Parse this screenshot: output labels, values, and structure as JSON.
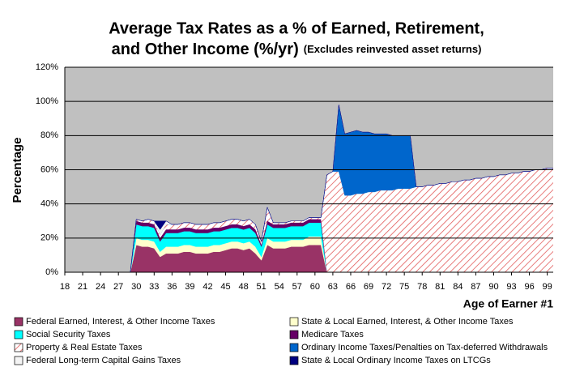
{
  "chart_data": {
    "type": "stacked-area",
    "title_lines": [
      "Average Tax Rates as a % of Earned, Retirement,",
      "and Other Income (%/yr)"
    ],
    "subtitle": "(Excludes reinvested asset returns)",
    "x_label": "Age of Earner #1",
    "y_label": "Percentage",
    "x": [
      18,
      19,
      20,
      21,
      22,
      23,
      24,
      25,
      26,
      27,
      28,
      29,
      30,
      31,
      32,
      33,
      34,
      35,
      36,
      37,
      38,
      39,
      40,
      41,
      42,
      43,
      44,
      45,
      46,
      47,
      48,
      49,
      50,
      51,
      52,
      53,
      54,
      55,
      56,
      57,
      58,
      59,
      60,
      61,
      62,
      63,
      64,
      65,
      66,
      67,
      68,
      69,
      70,
      71,
      72,
      73,
      74,
      75,
      76,
      77,
      78,
      79,
      80,
      81,
      82,
      83,
      84,
      85,
      86,
      87,
      88,
      89,
      90,
      91,
      92,
      93,
      94,
      95,
      96,
      97,
      98,
      99,
      100
    ],
    "xlim": [
      18,
      100
    ],
    "xticks": [
      18,
      21,
      24,
      27,
      30,
      33,
      36,
      39,
      42,
      45,
      48,
      51,
      54,
      57,
      60,
      63,
      66,
      69,
      72,
      75,
      78,
      81,
      84,
      87,
      90,
      93,
      96,
      99
    ],
    "ylim": [
      0,
      120
    ],
    "yticks": [
      {
        "value": 0,
        "label": "0%"
      },
      {
        "value": 20,
        "label": "20%"
      },
      {
        "value": 40,
        "label": "40%"
      },
      {
        "value": 60,
        "label": "60%"
      },
      {
        "value": 80,
        "label": "80%"
      },
      {
        "value": 100,
        "label": "100%"
      },
      {
        "value": 120,
        "label": "120%"
      }
    ],
    "grid": true,
    "series": [
      {
        "name": "Federal Earned, Interest, & Other Income Taxes",
        "color": "#993366",
        "values": [
          0,
          0,
          0,
          0,
          0,
          0,
          0,
          0,
          0,
          0,
          0,
          0,
          16,
          15,
          15,
          14,
          9,
          11,
          11,
          11,
          12,
          12,
          11,
          11,
          11,
          12,
          12,
          13,
          14,
          14,
          13,
          14,
          11,
          7,
          16,
          14,
          14,
          14,
          15,
          15,
          15,
          16,
          16,
          16,
          0,
          0,
          0,
          0,
          0,
          0,
          0,
          0,
          0,
          0,
          0,
          0,
          0,
          0,
          0,
          0,
          0,
          0,
          0,
          0,
          0,
          0,
          0,
          0,
          0,
          0,
          0,
          0,
          0,
          0,
          0,
          0,
          0,
          0,
          0,
          0,
          0,
          0,
          0
        ]
      },
      {
        "name": "State & Local Earned, Interest, & Other Income Taxes",
        "color": "#FFFFCC",
        "values": [
          0,
          0,
          0,
          0,
          0,
          0,
          0,
          0,
          0,
          0,
          0,
          0,
          4,
          4,
          4,
          4,
          3,
          4,
          4,
          4,
          4,
          4,
          4,
          4,
          4,
          4,
          4,
          4,
          4,
          4,
          4,
          4,
          4,
          2,
          4,
          4,
          4,
          4,
          4,
          4,
          4,
          5,
          5,
          5,
          0,
          0,
          0,
          0,
          0,
          0,
          0,
          0,
          0,
          0,
          0,
          0,
          0,
          0,
          0,
          0,
          0,
          0,
          0,
          0,
          0,
          0,
          0,
          0,
          0,
          0,
          0,
          0,
          0,
          0,
          0,
          0,
          0,
          0,
          0,
          0,
          0,
          0,
          0
        ]
      },
      {
        "name": "Social Security Taxes",
        "color": "#00FFFF",
        "values": [
          0,
          0,
          0,
          0,
          0,
          0,
          0,
          0,
          0,
          0,
          0,
          0,
          8,
          8,
          8,
          8,
          6,
          8,
          8,
          8,
          8,
          8,
          8,
          8,
          8,
          8,
          8,
          8,
          8,
          8,
          8,
          8,
          8,
          6,
          8,
          8,
          8,
          8,
          8,
          8,
          8,
          8,
          8,
          8,
          0,
          0,
          0,
          0,
          0,
          0,
          0,
          0,
          0,
          0,
          0,
          0,
          0,
          0,
          0,
          0,
          0,
          0,
          0,
          0,
          0,
          0,
          0,
          0,
          0,
          0,
          0,
          0,
          0,
          0,
          0,
          0,
          0,
          0,
          0,
          0,
          0,
          0,
          0
        ]
      },
      {
        "name": "Medicare Taxes",
        "color": "#660066",
        "values": [
          0,
          0,
          0,
          0,
          0,
          0,
          0,
          0,
          0,
          0,
          0,
          0,
          2,
          2,
          2,
          2,
          2,
          2,
          2,
          2,
          2,
          2,
          2,
          2,
          2,
          2,
          2,
          2,
          2,
          2,
          2,
          2,
          2,
          1,
          2,
          2,
          2,
          2,
          2,
          2,
          2,
          2,
          2,
          2,
          0,
          0,
          0,
          0,
          0,
          0,
          0,
          0,
          0,
          0,
          0,
          0,
          0,
          0,
          0,
          0,
          0,
          0,
          0,
          0,
          0,
          0,
          0,
          0,
          0,
          0,
          0,
          0,
          0,
          0,
          0,
          0,
          0,
          0,
          0,
          0,
          0,
          0,
          0
        ]
      },
      {
        "name": "Property & Real Estate Taxes",
        "color": "#E05050",
        "fill_pattern": "diagonal-hatch",
        "values": [
          0,
          0,
          0,
          0,
          0,
          0,
          0,
          0,
          0,
          0,
          0,
          0,
          1,
          1,
          2,
          2,
          2,
          3,
          3,
          3,
          3,
          3,
          3,
          3,
          3,
          3,
          3,
          3,
          3,
          3,
          3,
          3,
          3,
          2,
          8,
          1,
          1,
          1,
          1,
          1,
          1,
          1,
          1,
          1,
          57,
          59,
          59,
          45,
          45,
          46,
          46,
          47,
          47,
          48,
          48,
          48,
          49,
          49,
          49,
          50,
          50,
          51,
          51,
          52,
          52,
          53,
          53,
          54,
          54,
          55,
          55,
          56,
          56,
          57,
          57,
          58,
          58,
          59,
          59,
          60,
          60,
          61,
          61
        ]
      },
      {
        "name": "Ordinary Income Taxes/Penalties on Tax-deferred Withdrawals",
        "color": "#0066CC",
        "values": [
          0,
          0,
          0,
          0,
          0,
          0,
          0,
          0,
          0,
          0,
          0,
          0,
          0,
          0,
          0,
          0,
          0,
          0,
          0,
          0,
          0,
          0,
          0,
          0,
          0,
          0,
          0,
          0,
          0,
          0,
          0,
          0,
          0,
          0,
          0,
          0,
          0,
          0,
          0,
          0,
          0,
          0,
          0,
          0,
          0,
          0,
          39,
          36,
          37,
          37,
          36,
          35,
          34,
          33,
          33,
          32,
          31,
          31,
          31,
          0,
          0,
          0,
          0,
          0,
          0,
          0,
          0,
          0,
          0,
          0,
          0,
          0,
          0,
          0,
          0,
          0,
          0,
          0,
          0,
          0,
          0,
          0,
          0
        ]
      },
      {
        "name": "Federal Long-term Capital Gains Taxes",
        "color": "#F4F4F4",
        "values": [
          0,
          0,
          0,
          0,
          0,
          0,
          0,
          0,
          0,
          0,
          0,
          0,
          0,
          0,
          0,
          0,
          3,
          2,
          0,
          0,
          0,
          0,
          0,
          0,
          0,
          0,
          0,
          0,
          0,
          0,
          0,
          0,
          0,
          0,
          0,
          0,
          0,
          0,
          0,
          0,
          0,
          0,
          0,
          0,
          0,
          0,
          0,
          0,
          0,
          0,
          0,
          0,
          0,
          0,
          0,
          0,
          0,
          0,
          0,
          0,
          0,
          0,
          0,
          0,
          0,
          0,
          0,
          0,
          0,
          0,
          0,
          0,
          0,
          0,
          0,
          0,
          0,
          0,
          0,
          0,
          0,
          0,
          0
        ]
      },
      {
        "name": "State & Local Ordinary Income Taxes on LTCGs",
        "color": "#000080",
        "values": [
          0,
          0,
          0,
          0,
          0,
          0,
          0,
          0,
          0,
          0,
          0,
          0,
          0,
          0,
          0,
          0,
          5,
          0,
          0,
          0,
          0,
          0,
          0,
          0,
          0,
          0,
          0,
          0,
          0,
          0,
          0,
          0,
          0,
          0,
          0,
          0,
          0,
          0,
          0,
          0,
          0,
          0,
          0,
          0,
          0,
          0,
          0,
          0,
          0,
          0,
          0,
          0,
          0,
          0,
          0,
          0,
          0,
          0,
          0,
          0,
          0,
          0,
          0,
          0,
          0,
          0,
          0,
          0,
          0,
          0,
          0,
          0,
          0,
          0,
          0,
          0,
          0,
          0,
          0,
          0,
          0,
          0,
          0
        ]
      }
    ]
  }
}
